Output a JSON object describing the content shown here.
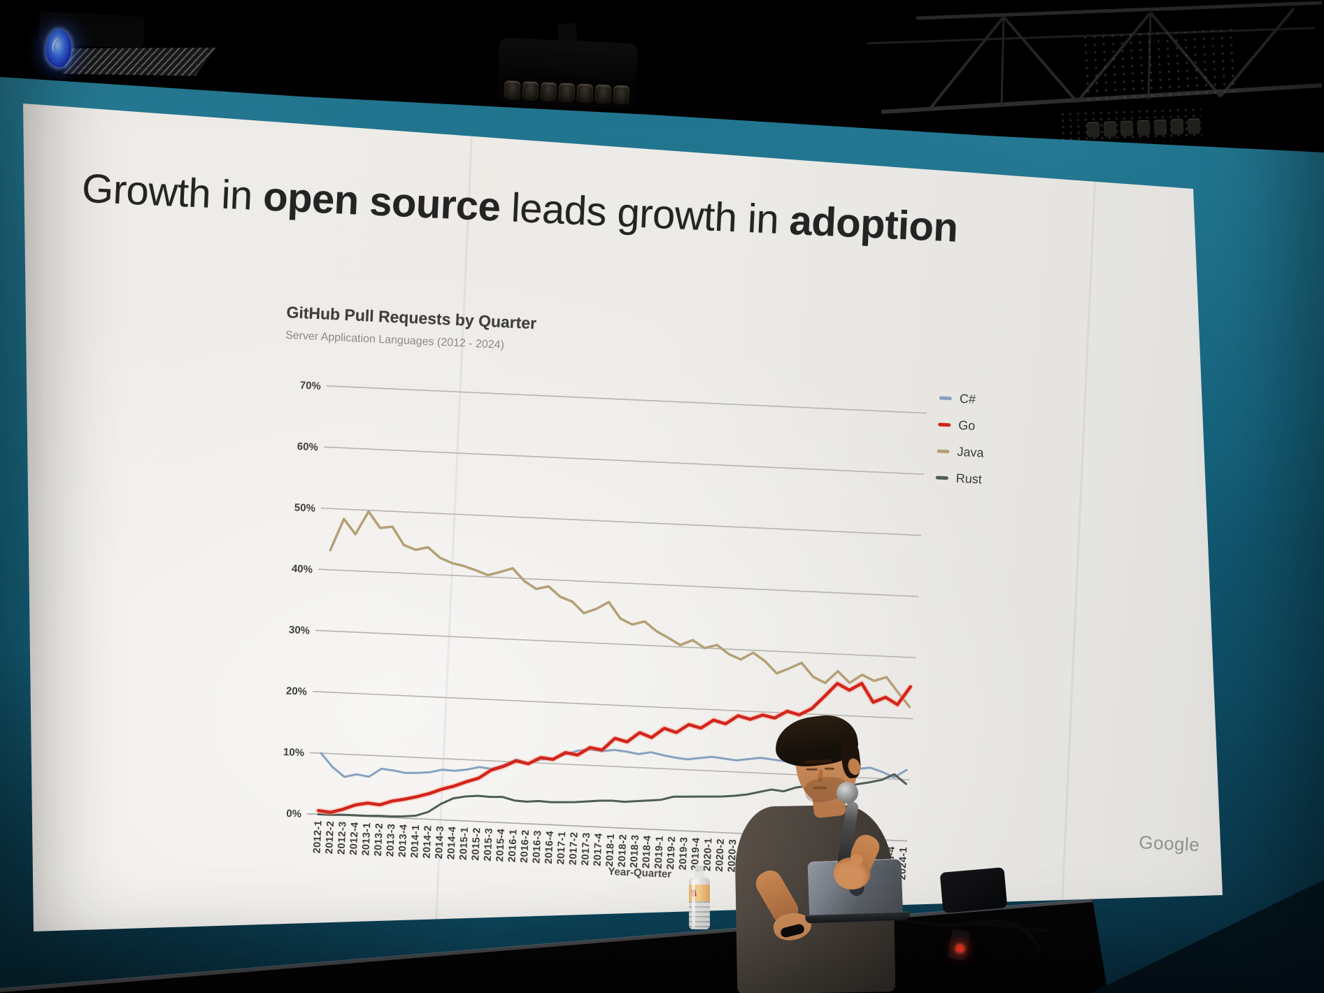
{
  "scene": {
    "description": "Photo of a conference talk: presenter with microphone and laptop on a dark podium in front of a large projected slide, teal wall and black ceiling truss with stage lights",
    "objects": [
      "ceiling-truss",
      "stage-light-bar",
      "projector-led-light",
      "vent-fins",
      "perforated-panel",
      "projection-screen",
      "presenter",
      "microphone",
      "laptop",
      "water-bottle",
      "desk",
      "power-cable",
      "red-led"
    ]
  },
  "slide": {
    "title_segments": [
      {
        "text": "Growth in ",
        "bold": false
      },
      {
        "text": "open source",
        "bold": true
      },
      {
        "text": " leads growth in ",
        "bold": false
      },
      {
        "text": "adoption",
        "bold": true
      }
    ],
    "footer_logo": "Google"
  },
  "chart_data": {
    "type": "line",
    "title": "GitHub Pull Requests by Quarter",
    "subtitle": "Server Application Languages (2012 - 2024)",
    "xlabel": "Year-Quarter",
    "ylabel": "",
    "ylim": [
      0,
      70
    ],
    "yticks": [
      70,
      60,
      50,
      40,
      30,
      20,
      10,
      0
    ],
    "ytick_suffix": "%",
    "grid": true,
    "legend_position": "right",
    "categories": [
      "2012-1",
      "2012-2",
      "2012-3",
      "2012-4",
      "2013-1",
      "2013-2",
      "2013-3",
      "2013-4",
      "2014-1",
      "2014-2",
      "2014-3",
      "2014-4",
      "2015-1",
      "2015-2",
      "2015-3",
      "2015-4",
      "2016-1",
      "2016-2",
      "2016-3",
      "2016-4",
      "2017-1",
      "2017-2",
      "2017-3",
      "2017-4",
      "2018-1",
      "2018-2",
      "2018-3",
      "2018-4",
      "2019-1",
      "2019-2",
      "2019-3",
      "2019-4",
      "2020-1",
      "2020-2",
      "2020-3",
      "2020-4",
      "2021-1",
      "2021-2",
      "2021-3",
      "2021-4",
      "2022-1",
      "2022-2",
      "2022-3",
      "2022-4",
      "2023-1",
      "2023-2",
      "2023-3",
      "2023-4",
      "2024-1"
    ],
    "series": [
      {
        "name": "C#",
        "color": "#87a1c0",
        "width": 3,
        "values": [
          10.0,
          7.8,
          6.3,
          6.8,
          6.5,
          7.9,
          7.7,
          7.4,
          7.5,
          7.7,
          8.2,
          8.1,
          8.4,
          8.9,
          8.7,
          9.4,
          10.4,
          9.9,
          10.6,
          10.8,
          11.6,
          12.3,
          12.6,
          12.4,
          12.7,
          12.5,
          12.2,
          12.6,
          12.2,
          11.9,
          11.7,
          12.0,
          12.3,
          12.1,
          11.9,
          12.2,
          12.5,
          12.3,
          12.1,
          12.4,
          12.2,
          11.9,
          11.6,
          11.8,
          11.4,
          11.7,
          11.1,
          10.3,
          11.6
        ]
      },
      {
        "name": "Go",
        "color": "#d2251c",
        "halo": "#ff9d88",
        "width": 4.5,
        "values": [
          0.6,
          0.4,
          1.0,
          1.8,
          2.2,
          2.0,
          2.7,
          3.1,
          3.6,
          4.2,
          5.0,
          5.6,
          6.4,
          7.1,
          8.5,
          9.2,
          10.2,
          9.8,
          10.9,
          10.7,
          11.9,
          11.6,
          12.9,
          12.6,
          14.6,
          14.1,
          15.7,
          15.0,
          16.6,
          16.0,
          17.4,
          16.9,
          18.3,
          17.8,
          19.2,
          18.7,
          19.5,
          19.1,
          20.3,
          19.8,
          20.9,
          23.0,
          25.2,
          24.2,
          25.4,
          22.4,
          23.3,
          22.2,
          25.2
        ]
      },
      {
        "name": "Java",
        "color": "#b3a074",
        "width": 3.5,
        "values": [
          43.2,
          48.4,
          46.0,
          49.8,
          47.2,
          47.5,
          44.6,
          43.9,
          44.4,
          42.8,
          42.0,
          41.6,
          41.0,
          40.3,
          40.9,
          41.6,
          39.6,
          38.4,
          38.9,
          37.3,
          36.6,
          34.8,
          35.6,
          36.8,
          34.2,
          33.3,
          33.9,
          32.4,
          31.4,
          30.3,
          31.2,
          30.0,
          30.6,
          29.2,
          28.4,
          29.6,
          28.3,
          26.4,
          27.3,
          28.3,
          26.1,
          25.2,
          27.2,
          25.4,
          26.8,
          25.9,
          26.6,
          24.2,
          21.9
        ]
      },
      {
        "name": "Rust",
        "color": "#4e5d55",
        "width": 3,
        "values": [
          0.0,
          0.0,
          0.1,
          0.1,
          0.1,
          0.2,
          0.2,
          0.3,
          0.5,
          1.2,
          2.6,
          3.6,
          4.0,
          4.2,
          4.1,
          4.2,
          3.7,
          3.6,
          3.8,
          3.7,
          3.8,
          3.9,
          4.1,
          4.3,
          4.4,
          4.3,
          4.5,
          4.7,
          4.9,
          5.5,
          5.6,
          5.7,
          5.8,
          5.9,
          6.1,
          6.4,
          6.9,
          7.4,
          7.2,
          7.9,
          8.3,
          8.1,
          8.6,
          8.4,
          8.9,
          9.3,
          9.8,
          10.8,
          9.3
        ]
      }
    ]
  }
}
